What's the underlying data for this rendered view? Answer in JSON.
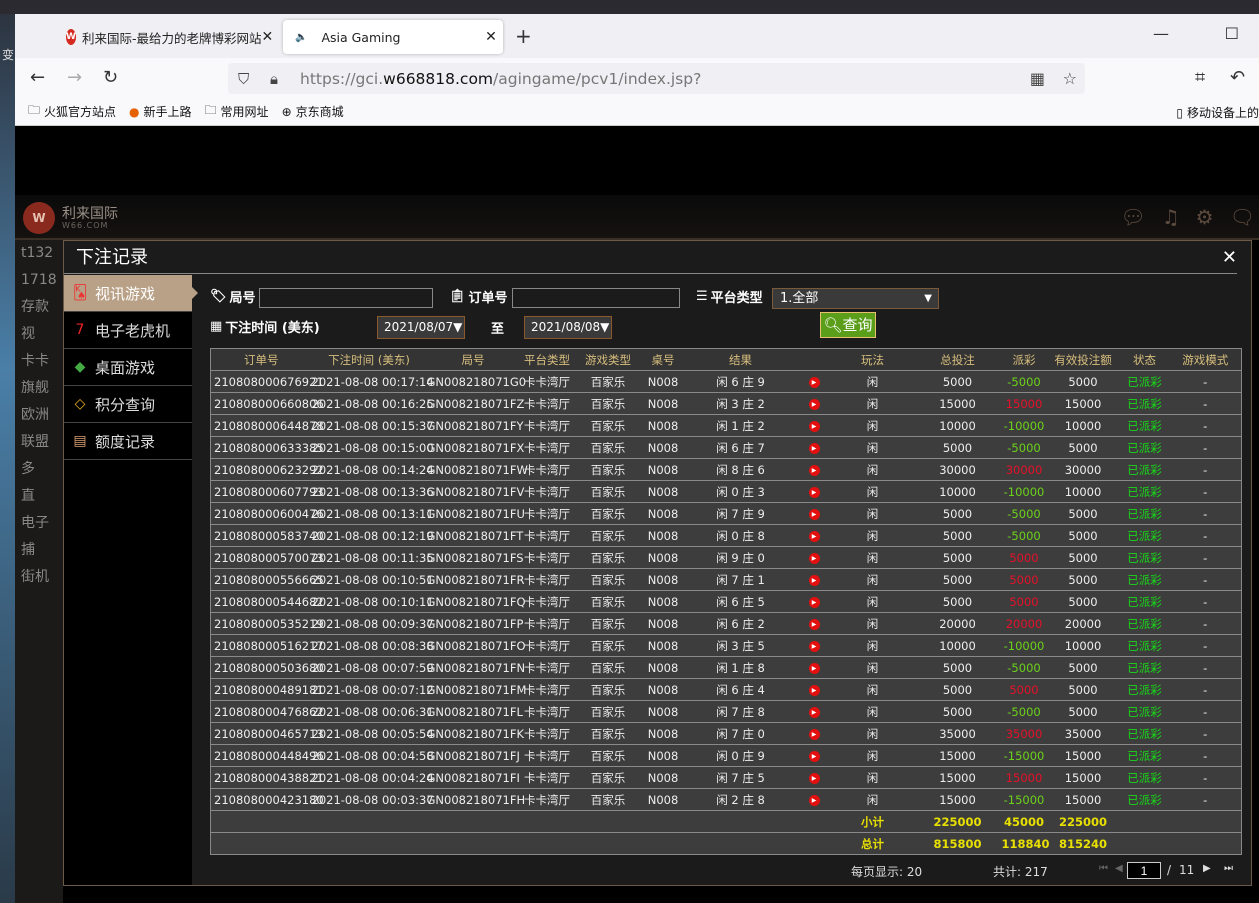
{
  "desktop": {
    "label": "变"
  },
  "browser": {
    "tabs": [
      {
        "label": "利来国际-最给力的老牌博彩网站",
        "favicon": "W"
      },
      {
        "label": "Asia Gaming",
        "icon": "speaker-icon"
      }
    ],
    "url_prefix": "https://gci.",
    "url_domain": "w668818.com",
    "url_path": "/agingame/pcv1/index.jsp?",
    "bookmarks": [
      "火狐官方站点",
      "新手上路",
      "常用网址",
      "京东商城"
    ],
    "mobile_bookmarks": "移动设备上的"
  },
  "game": {
    "logo_text": "利来国际",
    "logo_sub": "W66.COM",
    "left_fragments": [
      "t132",
      "1718",
      "存款",
      "视",
      "卡卡",
      "旗舰",
      "欧洲",
      "联盟",
      "多",
      "直",
      "电子",
      "捕",
      "街机"
    ]
  },
  "modal": {
    "title": "下注记录",
    "sidebar": [
      {
        "label": "视讯游戏",
        "icon": "playing-cards-icon",
        "active": true
      },
      {
        "label": "电子老虎机",
        "icon": "slot-777-icon"
      },
      {
        "label": "桌面游戏",
        "icon": "dice-chip-icon"
      },
      {
        "label": "积分查询",
        "icon": "diamond-icon"
      },
      {
        "label": "额度记录",
        "icon": "document-icon"
      }
    ],
    "filters": {
      "round_label": "局号",
      "round_value": "",
      "order_label": "订单号",
      "order_value": "",
      "platform_label": "平台类型",
      "platform_value": "1.全部",
      "time_label": "下注时间 (美东)",
      "date_from": "2021/08/07",
      "to_label": "至",
      "date_to": "2021/08/08",
      "query_label": "查询"
    },
    "table": {
      "headers": [
        "订单号",
        "下注时间 (美东)",
        "局号",
        "平台类型",
        "游戏类型",
        "桌号",
        "结果",
        "",
        "玩法",
        "总投注",
        "派彩",
        "有效投注额",
        "状态",
        "游戏模式"
      ],
      "rows": [
        [
          "210808000676921",
          "2021-08-08 00:17:14",
          "GN008218071G0",
          "卡卡湾厅",
          "百家乐",
          "N008",
          "闲 6 庄 9",
          "闲",
          "5000",
          "-5000",
          "5000",
          "已派彩",
          "-"
        ],
        [
          "210808000660806",
          "2021-08-08 00:16:25",
          "GN008218071FZ",
          "卡卡湾厅",
          "百家乐",
          "N008",
          "闲 3 庄 2",
          "闲",
          "15000",
          "15000",
          "15000",
          "已派彩",
          "-"
        ],
        [
          "210808000644878",
          "2021-08-08 00:15:37",
          "GN008218071FY",
          "卡卡湾厅",
          "百家乐",
          "N008",
          "闲 1 庄 2",
          "闲",
          "10000",
          "-10000",
          "10000",
          "已派彩",
          "-"
        ],
        [
          "210808000633385",
          "2021-08-08 00:15:00",
          "GN008218071FX",
          "卡卡湾厅",
          "百家乐",
          "N008",
          "闲 6 庄 7",
          "闲",
          "5000",
          "-5000",
          "5000",
          "已派彩",
          "-"
        ],
        [
          "210808000623292",
          "2021-08-08 00:14:24",
          "GN008218071FW",
          "卡卡湾厅",
          "百家乐",
          "N008",
          "闲 8 庄 6",
          "闲",
          "30000",
          "30000",
          "30000",
          "已派彩",
          "-"
        ],
        [
          "210808000607793",
          "2021-08-08 00:13:36",
          "GN008218071FV",
          "卡卡湾厅",
          "百家乐",
          "N008",
          "闲 0 庄 3",
          "闲",
          "10000",
          "-10000",
          "10000",
          "已派彩",
          "-"
        ],
        [
          "210808000600476",
          "2021-08-08 00:13:11",
          "GN008218071FU",
          "卡卡湾厅",
          "百家乐",
          "N008",
          "闲 7 庄 9",
          "闲",
          "5000",
          "-5000",
          "5000",
          "已派彩",
          "-"
        ],
        [
          "210808000583740",
          "2021-08-08 00:12:19",
          "GN008218071FT",
          "卡卡湾厅",
          "百家乐",
          "N008",
          "闲 0 庄 8",
          "闲",
          "5000",
          "-5000",
          "5000",
          "已派彩",
          "-"
        ],
        [
          "210808000570073",
          "2021-08-08 00:11:35",
          "GN008218071FS",
          "卡卡湾厅",
          "百家乐",
          "N008",
          "闲 9 庄 0",
          "闲",
          "5000",
          "5000",
          "5000",
          "已派彩",
          "-"
        ],
        [
          "210808000556665",
          "2021-08-08 00:10:51",
          "GN008218071FR",
          "卡卡湾厅",
          "百家乐",
          "N008",
          "闲 7 庄 1",
          "闲",
          "5000",
          "5000",
          "5000",
          "已派彩",
          "-"
        ],
        [
          "210808000544682",
          "2021-08-08 00:10:11",
          "GN008218071FQ",
          "卡卡湾厅",
          "百家乐",
          "N008",
          "闲 6 庄 5",
          "闲",
          "5000",
          "5000",
          "5000",
          "已派彩",
          "-"
        ],
        [
          "210808000535219",
          "2021-08-08 00:09:37",
          "GN008218071FP",
          "卡卡湾厅",
          "百家乐",
          "N008",
          "闲 6 庄 2",
          "闲",
          "20000",
          "20000",
          "20000",
          "已派彩",
          "-"
        ],
        [
          "210808000516217",
          "2021-08-08 00:08:38",
          "GN008218071FO",
          "卡卡湾厅",
          "百家乐",
          "N008",
          "闲 3 庄 5",
          "闲",
          "10000",
          "-10000",
          "10000",
          "已派彩",
          "-"
        ],
        [
          "210808000503680",
          "2021-08-08 00:07:59",
          "GN008218071FN",
          "卡卡湾厅",
          "百家乐",
          "N008",
          "闲 1 庄 8",
          "闲",
          "5000",
          "-5000",
          "5000",
          "已派彩",
          "-"
        ],
        [
          "210808000489181",
          "2021-08-08 00:07:12",
          "GN008218071FM",
          "卡卡湾厅",
          "百家乐",
          "N008",
          "闲 6 庄 4",
          "闲",
          "5000",
          "5000",
          "5000",
          "已派彩",
          "-"
        ],
        [
          "210808000476862",
          "2021-08-08 00:06:31",
          "GN008218071FL",
          "卡卡湾厅",
          "百家乐",
          "N008",
          "闲 7 庄 8",
          "闲",
          "5000",
          "-5000",
          "5000",
          "已派彩",
          "-"
        ],
        [
          "210808000465713",
          "2021-08-08 00:05:54",
          "GN008218071FK",
          "卡卡湾厅",
          "百家乐",
          "N008",
          "闲 7 庄 0",
          "闲",
          "35000",
          "35000",
          "35000",
          "已派彩",
          "-"
        ],
        [
          "210808000448496",
          "2021-08-08 00:04:58",
          "GN008218071FJ",
          "卡卡湾厅",
          "百家乐",
          "N008",
          "闲 0 庄 9",
          "闲",
          "15000",
          "-15000",
          "15000",
          "已派彩",
          "-"
        ],
        [
          "210808000438821",
          "2021-08-08 00:04:24",
          "GN008218071FI",
          "卡卡湾厅",
          "百家乐",
          "N008",
          "闲 7 庄 5",
          "闲",
          "15000",
          "15000",
          "15000",
          "已派彩",
          "-"
        ],
        [
          "210808000423180",
          "2021-08-08 00:03:37",
          "GN008218071FH",
          "卡卡湾厅",
          "百家乐",
          "N008",
          "闲 2 庄 8",
          "闲",
          "15000",
          "-15000",
          "15000",
          "已派彩",
          "-"
        ]
      ],
      "subtotal": {
        "label": "小计",
        "total_bet": "225000",
        "payout": "45000",
        "valid_bet": "225000"
      },
      "total": {
        "label": "总计",
        "total_bet": "815800",
        "payout": "118840",
        "valid_bet": "815240"
      }
    },
    "footer": {
      "per_page": "每页显示: 20",
      "total_count": "共计: 217",
      "page": "1",
      "page_sep": "/",
      "page_total": "11"
    }
  },
  "colors": {
    "payout_negative": "#6bd21a",
    "payout_positive": "#e8102a",
    "status": "#18d818",
    "summary": "#e8e000",
    "header_text": "#d8bf7e",
    "active_tab": "#b9a187",
    "query_button": "#5a9e1a"
  }
}
